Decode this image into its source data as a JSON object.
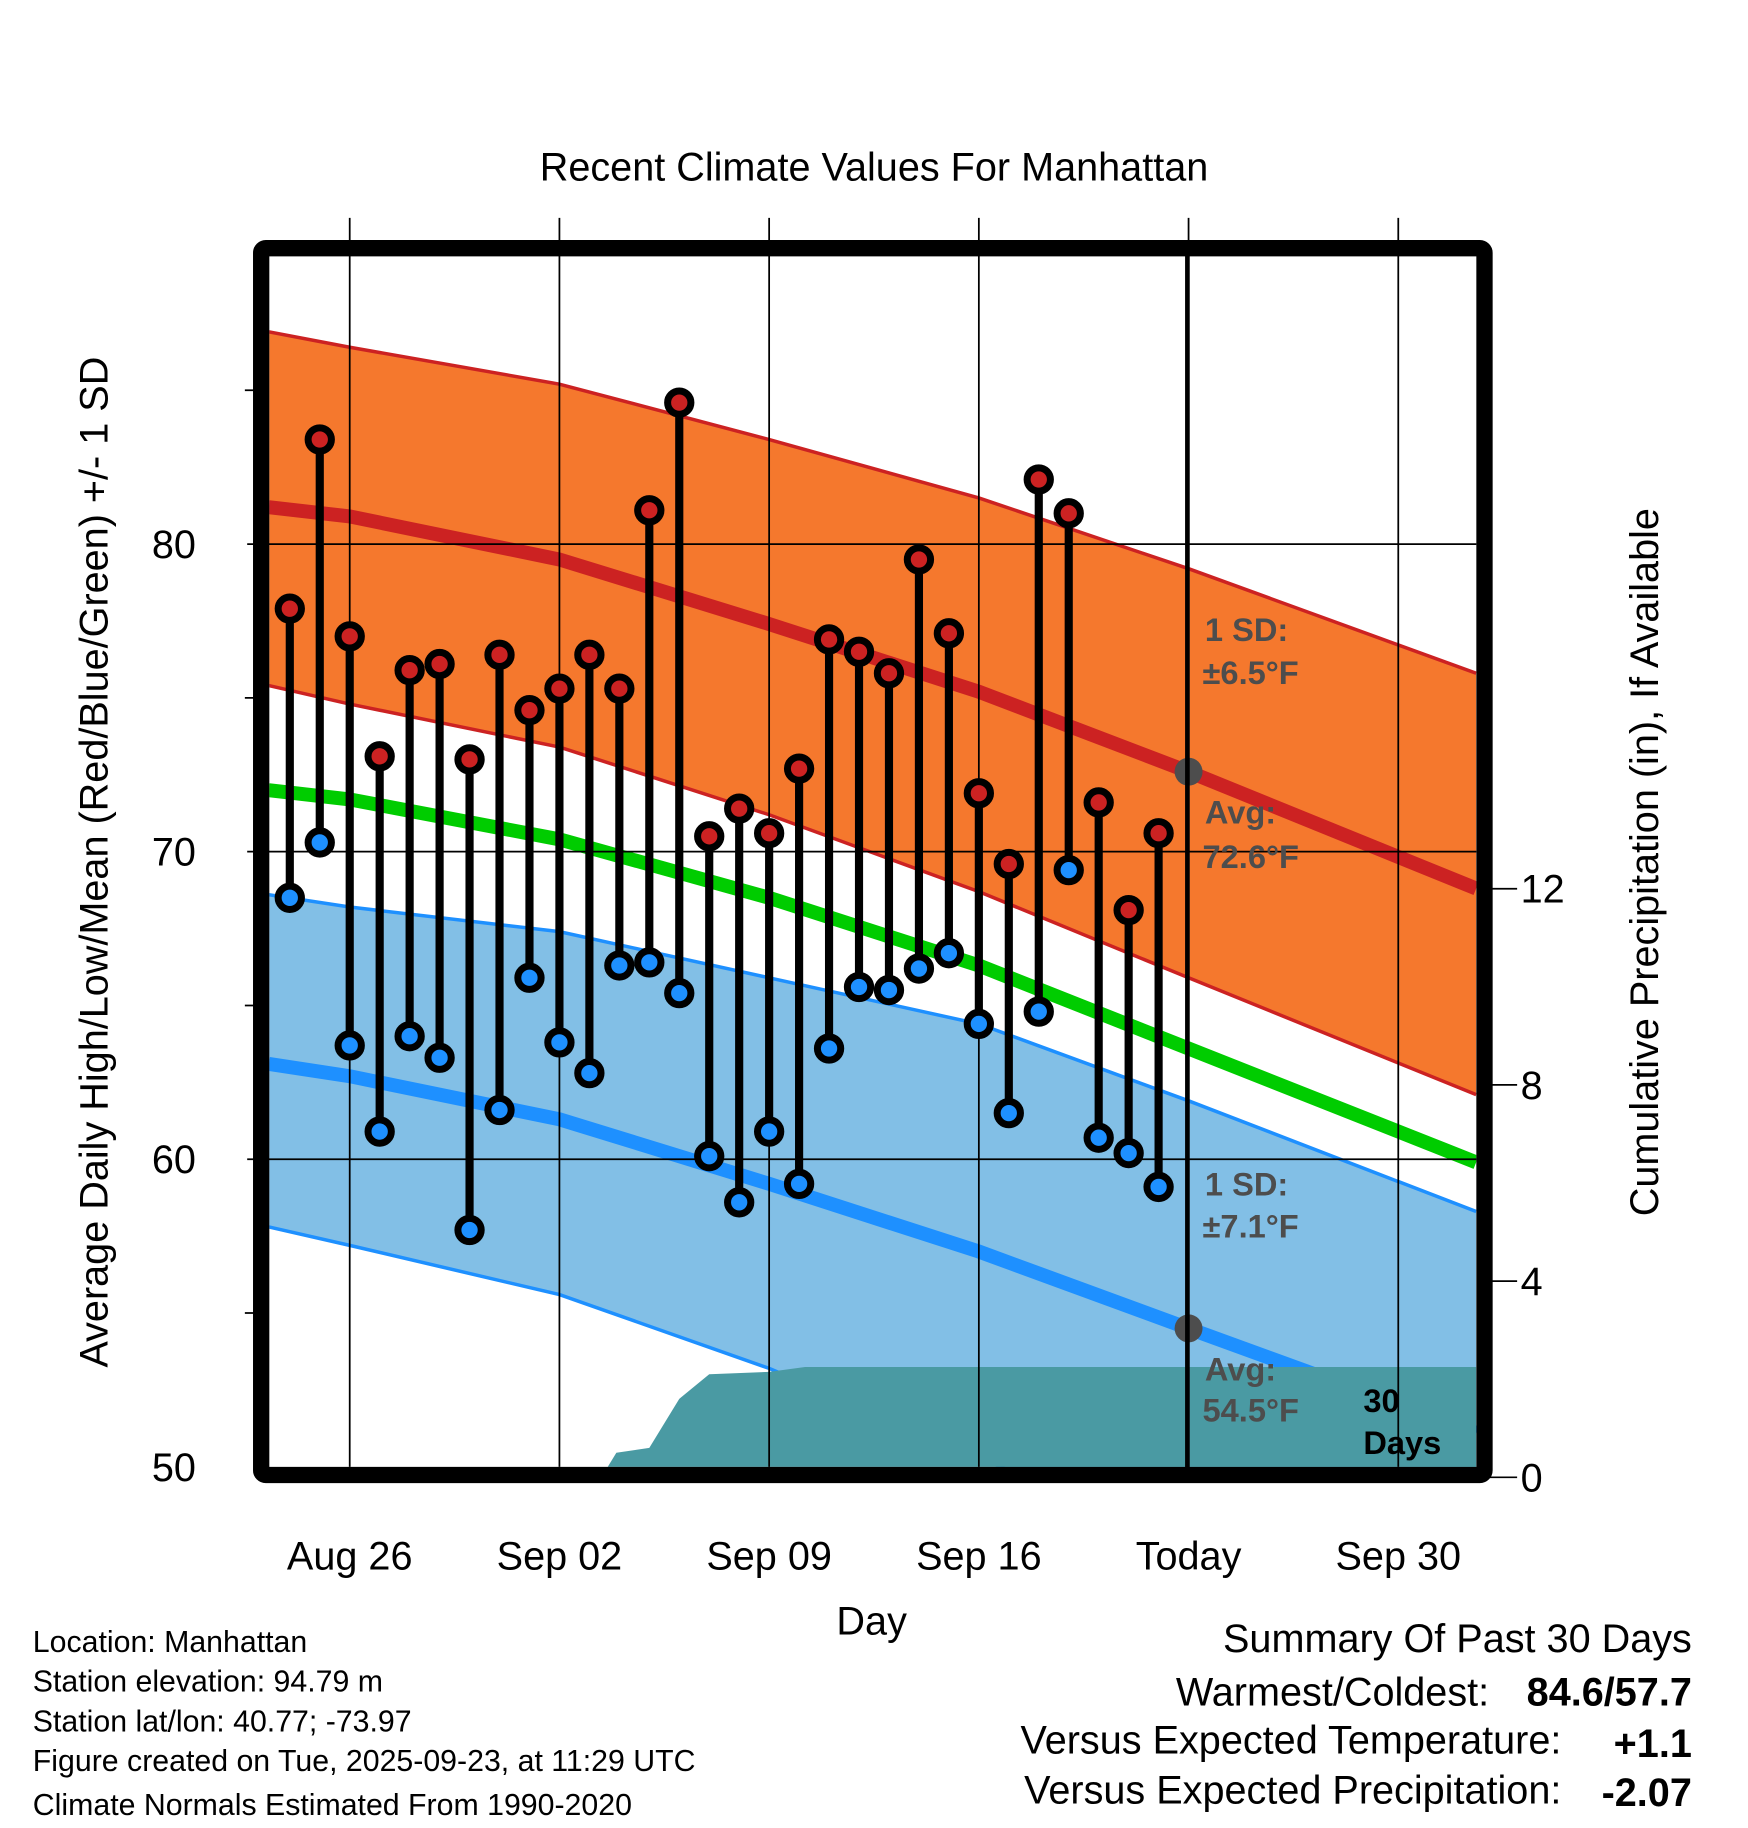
{
  "chart_data": {
    "type": "line",
    "title": "Recent Climate Values For Manhattan",
    "xlabel": "Day",
    "ylabel": "Average Daily High/Low/Mean (Red/Blue/Green) +/- 1 SD",
    "y2label": "Cumulative Precipitation (in), If Available",
    "ylim": [
      50,
      90
    ],
    "y2lim": [
      0,
      23.5
    ],
    "x_ticks": [
      {
        "day": 0,
        "label": "Aug 26"
      },
      {
        "day": 7,
        "label": "Sep 02"
      },
      {
        "day": 14,
        "label": "Sep 09"
      },
      {
        "day": 21,
        "label": "Sep 16"
      },
      {
        "day": 28,
        "label": "Today"
      },
      {
        "day": 35,
        "label": "Sep 30"
      }
    ],
    "y_ticks": [
      {
        "v": 50,
        "label": "50"
      },
      {
        "v": 60,
        "label": "60"
      },
      {
        "v": 70,
        "label": "70"
      },
      {
        "v": 80,
        "label": "80"
      }
    ],
    "y_minor_ticks": [
      55,
      65,
      75,
      85
    ],
    "y2_ticks": [
      {
        "v": 0,
        "label": "0"
      },
      {
        "v": 4,
        "label": "4"
      },
      {
        "v": 8,
        "label": "8"
      },
      {
        "v": 12,
        "label": "12"
      }
    ],
    "x_range_days": [
      -2.7,
      37.6
    ],
    "today_day": 28,
    "colors": {
      "high": "#cc2222",
      "low": "#1e90ff",
      "mean": "#00cc00",
      "high_band": "#f5782d",
      "low_band": "#82bfe6",
      "precip": "#4a9aa3",
      "marker_gray": "#4d4d4d"
    },
    "normals": {
      "days": [
        -2.7,
        0,
        7,
        14,
        21,
        28,
        37.6
      ],
      "high_upper": [
        86.9,
        86.4,
        85.2,
        83.4,
        81.5,
        79.2,
        75.8
      ],
      "high_avg": [
        81.2,
        80.9,
        79.5,
        77.4,
        75.2,
        72.6,
        68.8
      ],
      "high_lower": [
        75.4,
        74.8,
        73.4,
        71.2,
        68.7,
        65.9,
        62.1
      ],
      "mean": [
        72.0,
        71.7,
        70.4,
        68.5,
        66.3,
        63.6,
        59.9
      ],
      "low_upper": [
        68.6,
        68.2,
        67.4,
        65.9,
        64.4,
        61.9,
        58.3
      ],
      "low_avg": [
        63.1,
        62.7,
        61.3,
        59.2,
        57.0,
        54.5,
        51.1
      ],
      "low_lower": [
        57.8,
        57.2,
        55.6,
        53.2,
        50.3,
        47.4,
        44.0
      ]
    },
    "observed": {
      "start_day": -2,
      "highs": [
        77.9,
        83.4,
        77.0,
        73.1,
        75.9,
        76.1,
        73.0,
        76.4,
        74.6,
        75.3,
        76.4,
        75.3,
        81.1,
        84.6,
        70.5,
        71.4,
        70.6,
        72.7,
        76.9,
        76.5,
        75.8,
        79.5,
        77.1,
        71.9,
        69.6,
        82.1,
        81.0,
        71.6,
        68.1,
        70.6
      ],
      "lows": [
        68.5,
        70.3,
        63.7,
        60.9,
        64.0,
        63.3,
        57.7,
        61.6,
        65.9,
        63.8,
        62.8,
        66.3,
        66.4,
        65.4,
        60.1,
        58.6,
        60.9,
        59.2,
        63.6,
        65.6,
        65.5,
        66.2,
        66.7,
        64.4,
        61.5,
        64.8,
        69.4,
        60.7,
        60.2,
        59.1
      ]
    },
    "precip": {
      "days": [
        -2.7,
        8.4,
        8.9,
        10,
        11,
        12,
        14,
        15.2,
        37.6
      ],
      "values": [
        0,
        0,
        0.5,
        0.6,
        1.6,
        2.1,
        2.15,
        2.25,
        2.25
      ]
    },
    "annotations": {
      "high_sd_line1": "1 SD:",
      "high_sd_line2": "±6.5°F",
      "high_avg_line1": "Avg:",
      "high_avg_line2": "72.6°F",
      "low_sd_line1": "1 SD:",
      "low_sd_line2": "±7.1°F",
      "low_avg_line1": "Avg:",
      "low_avg_line2": "54.5°F",
      "period_line1": "30",
      "period_line2": "Days"
    }
  },
  "info": {
    "location": "Location: Manhattan",
    "elevation": "Station elevation: 94.79 m",
    "latlon": "Station lat/lon: 40.77; -73.97",
    "created": "Figure created on Tue, 2025-09-23, at 11:29 UTC",
    "normals": "Climate Normals Estimated From 1990-2020"
  },
  "summary": {
    "title": "Summary Of Past 30 Days",
    "warm_cold_label": "Warmest/Coldest:",
    "warm_cold_value": "84.6/57.7",
    "temp_label": "Versus Expected Temperature:",
    "temp_value": "+1.1",
    "temp_color": "#d42020",
    "precip_label": "Versus Expected Precipitation:",
    "precip_value": "-2.07",
    "precip_color": "#a0522d"
  }
}
